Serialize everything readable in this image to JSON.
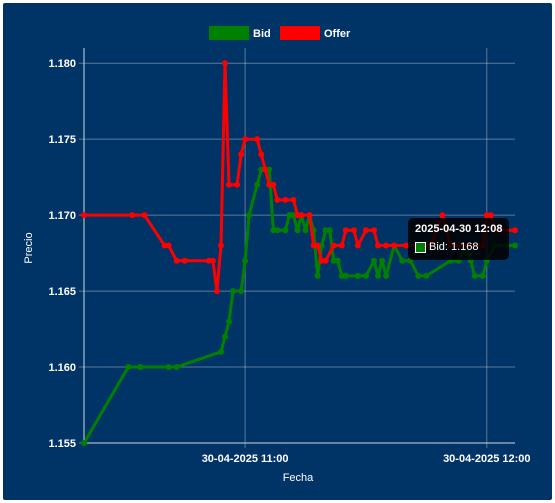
{
  "chart_data": {
    "type": "line",
    "title": "",
    "xlabel": "Fecha",
    "ylabel": "Precio",
    "ylim": [
      1.155,
      1.181
    ],
    "y_ticks": [
      "1.155",
      "1.160",
      "1.165",
      "1.170",
      "1.175",
      "1.180"
    ],
    "x_range": [
      "2025-04-30 10:20",
      "2025-04-30 12:07"
    ],
    "x_ticks": [
      {
        "time": "2025-04-30 11:00",
        "label": "30-04-2025 11:00"
      },
      {
        "time": "2025-04-30 12:00",
        "label": "30-04-2025 12:00"
      }
    ],
    "grid": true,
    "legend_position": "top",
    "series": [
      {
        "name": "Bid",
        "color": "#008000",
        "points": [
          [
            "2025-04-30 10:20",
            1.155
          ],
          [
            "2025-04-30 10:31",
            1.16
          ],
          [
            "2025-04-30 10:34",
            1.16
          ],
          [
            "2025-04-30 10:41",
            1.16
          ],
          [
            "2025-04-30 10:43",
            1.16
          ],
          [
            "2025-04-30 10:54",
            1.161
          ],
          [
            "2025-04-30 10:55",
            1.162
          ],
          [
            "2025-04-30 10:56",
            1.163
          ],
          [
            "2025-04-30 10:57",
            1.165
          ],
          [
            "2025-04-30 10:59",
            1.165
          ],
          [
            "2025-04-30 11:00",
            1.167
          ],
          [
            "2025-04-30 11:01",
            1.17
          ],
          [
            "2025-04-30 11:03",
            1.172
          ],
          [
            "2025-04-30 11:04",
            1.173
          ],
          [
            "2025-04-30 11:06",
            1.173
          ],
          [
            "2025-04-30 11:07",
            1.169
          ],
          [
            "2025-04-30 11:08",
            1.169
          ],
          [
            "2025-04-30 11:10",
            1.169
          ],
          [
            "2025-04-30 11:11",
            1.17
          ],
          [
            "2025-04-30 11:12",
            1.17
          ],
          [
            "2025-04-30 11:13",
            1.169
          ],
          [
            "2025-04-30 11:14",
            1.17
          ],
          [
            "2025-04-30 11:15",
            1.169
          ],
          [
            "2025-04-30 11:16",
            1.17
          ],
          [
            "2025-04-30 11:17",
            1.169
          ],
          [
            "2025-04-30 11:18",
            1.166
          ],
          [
            "2025-04-30 11:19",
            1.168
          ],
          [
            "2025-04-30 11:20",
            1.169
          ],
          [
            "2025-04-30 11:21",
            1.169
          ],
          [
            "2025-04-30 11:22",
            1.167
          ],
          [
            "2025-04-30 11:23",
            1.167
          ],
          [
            "2025-04-30 11:24",
            1.166
          ],
          [
            "2025-04-30 11:25",
            1.166
          ],
          [
            "2025-04-30 11:28",
            1.166
          ],
          [
            "2025-04-30 11:30",
            1.166
          ],
          [
            "2025-04-30 11:32",
            1.167
          ],
          [
            "2025-04-30 11:33",
            1.166
          ],
          [
            "2025-04-30 11:34",
            1.167
          ],
          [
            "2025-04-30 11:35",
            1.166
          ],
          [
            "2025-04-30 11:37",
            1.168
          ],
          [
            "2025-04-30 11:39",
            1.167
          ],
          [
            "2025-04-30 11:41",
            1.167
          ],
          [
            "2025-04-30 11:43",
            1.166
          ],
          [
            "2025-04-30 11:45",
            1.166
          ],
          [
            "2025-04-30 11:51",
            1.167
          ],
          [
            "2025-04-30 11:53",
            1.167
          ],
          [
            "2025-04-30 11:55",
            1.168
          ],
          [
            "2025-04-30 11:56",
            1.167
          ],
          [
            "2025-04-30 11:57",
            1.166
          ],
          [
            "2025-04-30 11:59",
            1.166
          ],
          [
            "2025-04-30 12:00",
            1.167
          ],
          [
            "2025-04-30 12:02",
            1.168
          ],
          [
            "2025-04-30 12:05",
            1.168
          ],
          [
            "2025-04-30 12:07",
            1.168
          ]
        ]
      },
      {
        "name": "Offer",
        "color": "#ff0000",
        "points": [
          [
            "2025-04-30 10:20",
            1.17
          ],
          [
            "2025-04-30 10:32",
            1.17
          ],
          [
            "2025-04-30 10:35",
            1.17
          ],
          [
            "2025-04-30 10:40",
            1.168
          ],
          [
            "2025-04-30 10:41",
            1.168
          ],
          [
            "2025-04-30 10:43",
            1.167
          ],
          [
            "2025-04-30 10:45",
            1.167
          ],
          [
            "2025-04-30 10:51",
            1.167
          ],
          [
            "2025-04-30 10:52",
            1.167
          ],
          [
            "2025-04-30 10:53",
            1.165
          ],
          [
            "2025-04-30 10:54",
            1.168
          ],
          [
            "2025-04-30 10:55",
            1.18
          ],
          [
            "2025-04-30 10:56",
            1.172
          ],
          [
            "2025-04-30 10:58",
            1.172
          ],
          [
            "2025-04-30 10:59",
            1.174
          ],
          [
            "2025-04-30 11:00",
            1.175
          ],
          [
            "2025-04-30 11:03",
            1.175
          ],
          [
            "2025-04-30 11:04",
            1.174
          ],
          [
            "2025-04-30 11:05",
            1.173
          ],
          [
            "2025-04-30 11:06",
            1.172
          ],
          [
            "2025-04-30 11:07",
            1.172
          ],
          [
            "2025-04-30 11:08",
            1.171
          ],
          [
            "2025-04-30 11:10",
            1.171
          ],
          [
            "2025-04-30 11:12",
            1.171
          ],
          [
            "2025-04-30 11:13",
            1.17
          ],
          [
            "2025-04-30 11:14",
            1.17
          ],
          [
            "2025-04-30 11:16",
            1.17
          ],
          [
            "2025-04-30 11:17",
            1.168
          ],
          [
            "2025-04-30 11:18",
            1.168
          ],
          [
            "2025-04-30 11:19",
            1.167
          ],
          [
            "2025-04-30 11:20",
            1.167
          ],
          [
            "2025-04-30 11:22",
            1.168
          ],
          [
            "2025-04-30 11:24",
            1.168
          ],
          [
            "2025-04-30 11:25",
            1.169
          ],
          [
            "2025-04-30 11:27",
            1.169
          ],
          [
            "2025-04-30 11:28",
            1.168
          ],
          [
            "2025-04-30 11:30",
            1.169
          ],
          [
            "2025-04-30 11:32",
            1.169
          ],
          [
            "2025-04-30 11:33",
            1.168
          ],
          [
            "2025-04-30 11:35",
            1.168
          ],
          [
            "2025-04-30 11:37",
            1.168
          ],
          [
            "2025-04-30 11:40",
            1.168
          ],
          [
            "2025-04-30 11:44",
            1.168
          ],
          [
            "2025-04-30 11:46",
            1.168
          ],
          [
            "2025-04-30 11:49",
            1.17
          ],
          [
            "2025-04-30 11:51",
            1.168
          ],
          [
            "2025-04-30 11:53",
            1.168
          ],
          [
            "2025-04-30 11:55",
            1.168
          ],
          [
            "2025-04-30 11:57",
            1.168
          ],
          [
            "2025-04-30 11:59",
            1.168
          ],
          [
            "2025-04-30 12:00",
            1.17
          ],
          [
            "2025-04-30 12:01",
            1.17
          ],
          [
            "2025-04-30 12:02",
            1.169
          ],
          [
            "2025-04-30 12:04",
            1.169
          ],
          [
            "2025-04-30 12:07",
            1.169
          ]
        ]
      }
    ]
  },
  "tooltip": {
    "title": "2025-04-30 12:08",
    "label": "Bid: 1.168",
    "swatch_color": "#008000"
  }
}
